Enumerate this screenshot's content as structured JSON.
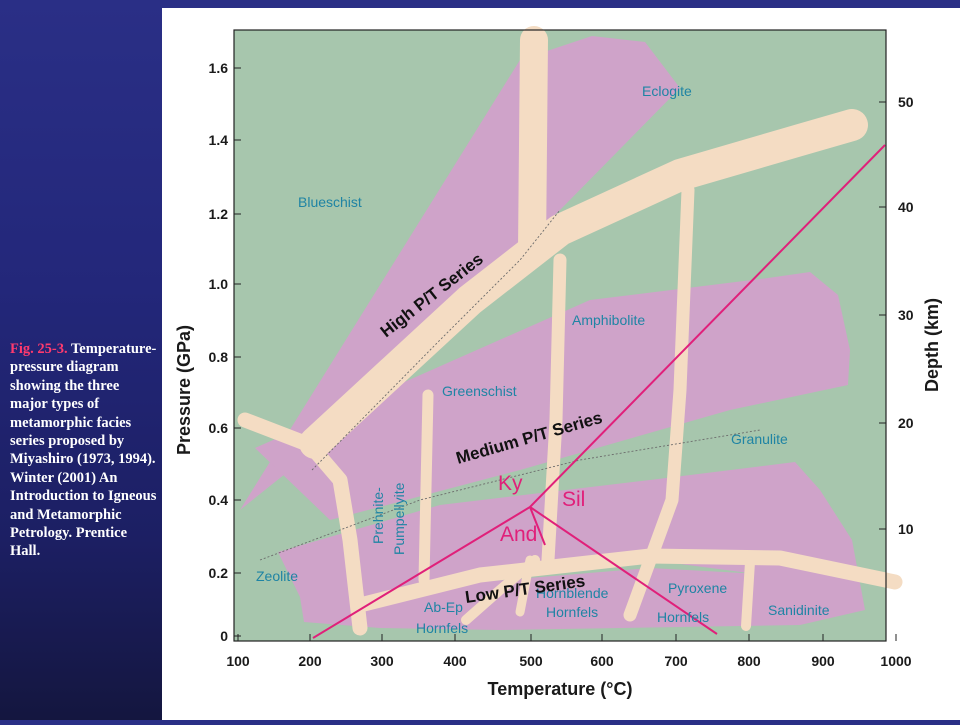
{
  "caption": {
    "fig_ref": "Fig. 25-3.",
    "text": "Temperature-pressure diagram showing the three major types of metamorphic facies series proposed by Miyashiro (1973, 1994). Winter (2001) An Introduction to Igneous and Metamorphic Petrology. Prentice Hall."
  },
  "axes": {
    "x_label": "Temperature (°C)",
    "y_left_label": "Pressure (GPa)",
    "y_right_label": "Depth (km)",
    "x_ticks": [
      "100",
      "200",
      "300",
      "400",
      "500",
      "600",
      "700",
      "800",
      "900",
      "1000"
    ],
    "y_left_ticks": [
      "0",
      "0.2",
      "0.4",
      "0.6",
      "0.8",
      "1.0",
      "1.2",
      "1.4",
      "1.6"
    ],
    "y_right_ticks": [
      "10",
      "20",
      "30",
      "40",
      "50"
    ]
  },
  "facies": {
    "eclogite": "Eclogite",
    "blueschist": "Blueschist",
    "amphibolite": "Amphibolite",
    "greenschist": "Greenschist",
    "granulite": "Granulite",
    "prehnite": "Prehnite-",
    "pumpellyite": "Pumpellyite",
    "zeolite": "Zeolite",
    "abep": "Ab-Ep",
    "hornfels1": "Hornfels",
    "hornblende": "Hornblende",
    "hornfels2": "Hornfels",
    "pyroxene": "Pyroxene",
    "hornfels3": "Hornfels",
    "sanidinite": "Sanidinite"
  },
  "series": {
    "high": "High P/T Series",
    "medium": "Medium P/T Series",
    "low": "Low P/T Series"
  },
  "polymorphs": {
    "ky": "Ky",
    "sil": "Sil",
    "and": "And"
  },
  "colors": {
    "background_green": "#a7c6ad",
    "series_band": "#cfa3c9",
    "facies_boundary": "#f4dcc3",
    "facies_label": "#1f84a4",
    "aluminosilicate": "#e0207a"
  }
}
